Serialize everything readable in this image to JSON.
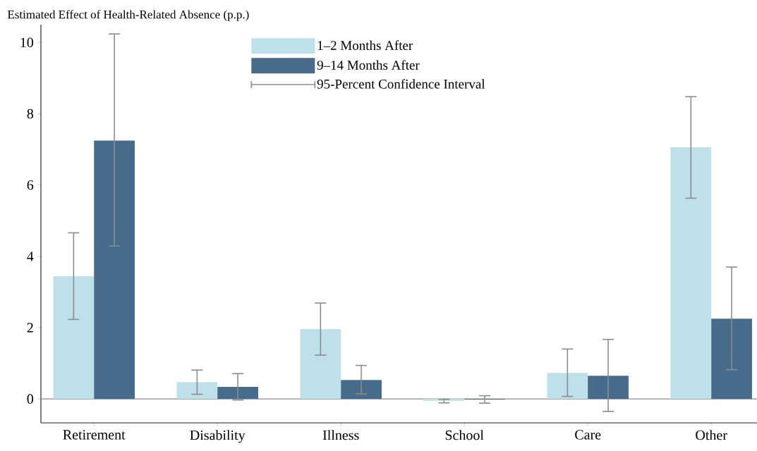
{
  "chart_data": {
    "type": "bar",
    "ylabel": "Estimated Effect of Health-Related Absence (p.p.)",
    "categories": [
      "Retirement",
      "Disability",
      "Illness",
      "School",
      "Care",
      "Other"
    ],
    "series": [
      {
        "name": "1–2 Months After",
        "color": "#bde0ea",
        "values": [
          3.44,
          0.47,
          1.96,
          -0.05,
          0.73,
          7.06
        ],
        "errors": [
          [
            2.23,
            4.66
          ],
          [
            0.13,
            0.81
          ],
          [
            1.23,
            2.69
          ],
          [
            -0.11,
            -0.01
          ],
          [
            0.07,
            1.4
          ],
          [
            5.63,
            8.48
          ]
        ]
      },
      {
        "name": "9–14 Months After",
        "color": "#476b8b",
        "values": [
          7.25,
          0.34,
          0.53,
          -0.02,
          0.65,
          2.25
        ],
        "errors": [
          [
            4.29,
            10.24
          ],
          [
            -0.03,
            0.71
          ],
          [
            0.14,
            0.94
          ],
          [
            -0.12,
            0.09
          ],
          [
            -0.35,
            1.67
          ],
          [
            0.82,
            3.7
          ]
        ]
      }
    ],
    "annotations": [
      "95-Percent Confidence Interval"
    ],
    "ref_lines": [
      {
        "axis": "y",
        "value": 0,
        "color": "#8c8c8c"
      }
    ],
    "ylim": [
      -0.67,
      10.5
    ],
    "yticks": [
      0,
      2,
      4,
      6,
      8,
      10
    ],
    "grid": false,
    "legend": "top"
  }
}
